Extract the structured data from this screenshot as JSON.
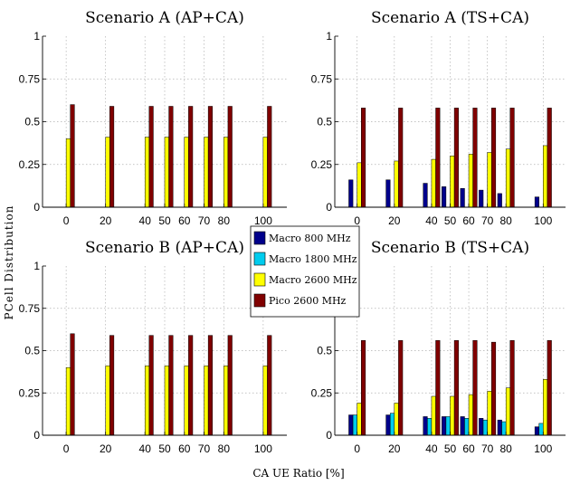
{
  "figure": {
    "ylabel": "PCell Distribution",
    "xlabel": "CA UE Ratio [%]"
  },
  "legend": {
    "placement": "center",
    "items": [
      {
        "name": "Macro 800 MHz",
        "color": "#00008b"
      },
      {
        "name": "Macro 1800 MHz",
        "color": "#00ccee"
      },
      {
        "name": "Macro 2600 MHz",
        "color": "#ffff00"
      },
      {
        "name": "Pico 2600 MHz",
        "color": "#800000"
      }
    ]
  },
  "chart_data": [
    {
      "type": "bar",
      "title": "Scenario A (AP+CA)",
      "categories": [
        0,
        20,
        40,
        50,
        60,
        70,
        80,
        100
      ],
      "ylim": [
        0,
        1
      ],
      "yticks": [
        "0",
        "0.25",
        "0.5",
        "0.75",
        "1"
      ],
      "grid": true,
      "series": [
        {
          "name": "Macro 800 MHz",
          "values": [
            0,
            0,
            0,
            0,
            0,
            0,
            0,
            0
          ]
        },
        {
          "name": "Macro 1800 MHz",
          "values": [
            0,
            0,
            0,
            0,
            0,
            0,
            0,
            0
          ]
        },
        {
          "name": "Macro 2600 MHz",
          "values": [
            0.4,
            0.41,
            0.41,
            0.41,
            0.41,
            0.41,
            0.41,
            0.41
          ]
        },
        {
          "name": "Pico 2600 MHz",
          "values": [
            0.6,
            0.59,
            0.59,
            0.59,
            0.59,
            0.59,
            0.59,
            0.59
          ]
        }
      ]
    },
    {
      "type": "bar",
      "title": "Scenario A (TS+CA)",
      "categories": [
        0,
        20,
        40,
        50,
        60,
        70,
        80,
        100
      ],
      "ylim": [
        0,
        1
      ],
      "yticks": [
        "0",
        "0.25",
        "0.5",
        "0.75",
        "1"
      ],
      "grid": true,
      "series": [
        {
          "name": "Macro 800 MHz",
          "values": [
            0.16,
            0.16,
            0.14,
            0.12,
            0.11,
            0.1,
            0.08,
            0.06
          ]
        },
        {
          "name": "Macro 1800 MHz",
          "values": [
            0,
            0,
            0,
            0,
            0,
            0,
            0,
            0
          ]
        },
        {
          "name": "Macro 2600 MHz",
          "values": [
            0.26,
            0.27,
            0.28,
            0.3,
            0.31,
            0.32,
            0.34,
            0.36
          ]
        },
        {
          "name": "Pico 2600 MHz",
          "values": [
            0.58,
            0.58,
            0.58,
            0.58,
            0.58,
            0.58,
            0.58,
            0.58
          ]
        }
      ]
    },
    {
      "type": "bar",
      "title": "Scenario B (AP+CA)",
      "categories": [
        0,
        20,
        40,
        50,
        60,
        70,
        80,
        100
      ],
      "ylim": [
        0,
        1
      ],
      "yticks": [
        "0",
        "0.25",
        "0.5",
        "0.75",
        "1"
      ],
      "grid": true,
      "series": [
        {
          "name": "Macro 800 MHz",
          "values": [
            0,
            0,
            0,
            0,
            0,
            0,
            0,
            0
          ]
        },
        {
          "name": "Macro 1800 MHz",
          "values": [
            0,
            0,
            0,
            0,
            0,
            0,
            0,
            0
          ]
        },
        {
          "name": "Macro 2600 MHz",
          "values": [
            0.4,
            0.41,
            0.41,
            0.41,
            0.41,
            0.41,
            0.41,
            0.41
          ]
        },
        {
          "name": "Pico 2600 MHz",
          "values": [
            0.6,
            0.59,
            0.59,
            0.59,
            0.59,
            0.59,
            0.59,
            0.59
          ]
        }
      ]
    },
    {
      "type": "bar",
      "title": "Scenario B (TS+CA)",
      "categories": [
        0,
        20,
        40,
        50,
        60,
        70,
        80,
        100
      ],
      "ylim": [
        0,
        1
      ],
      "yticks": [
        "0",
        "0.25",
        "0.5",
        "0.75",
        "1"
      ],
      "grid": true,
      "series": [
        {
          "name": "Macro 800 MHz",
          "values": [
            0.12,
            0.12,
            0.11,
            0.11,
            0.11,
            0.1,
            0.09,
            0.05
          ]
        },
        {
          "name": "Macro 1800 MHz",
          "values": [
            0.12,
            0.13,
            0.1,
            0.11,
            0.1,
            0.09,
            0.08,
            0.07
          ]
        },
        {
          "name": "Macro 2600 MHz",
          "values": [
            0.19,
            0.19,
            0.23,
            0.23,
            0.24,
            0.26,
            0.28,
            0.33
          ]
        },
        {
          "name": "Pico 2600 MHz",
          "values": [
            0.56,
            0.56,
            0.56,
            0.56,
            0.56,
            0.55,
            0.56,
            0.56
          ]
        }
      ]
    }
  ]
}
